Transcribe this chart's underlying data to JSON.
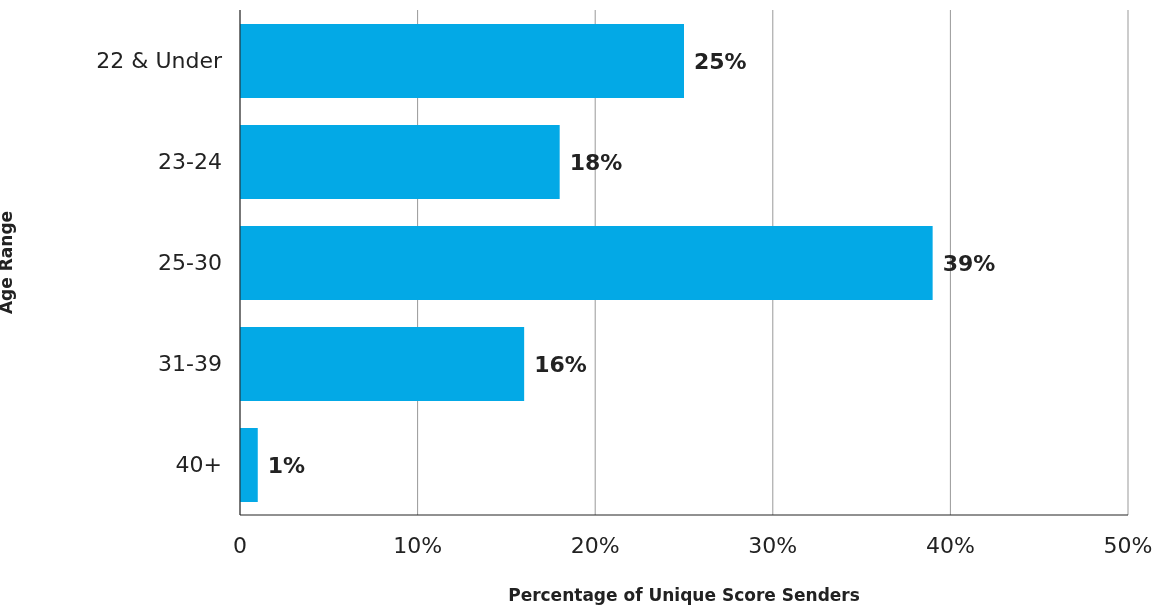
{
  "chart_data": {
    "type": "bar",
    "orientation": "horizontal",
    "xlabel": "Percentage of Unique Score Senders",
    "ylabel": "Age Range",
    "categories": [
      "22 & Under",
      "23-24",
      "25-30",
      "31-39",
      "40+"
    ],
    "values": [
      25,
      18,
      39,
      16,
      1
    ],
    "value_labels": [
      "25%",
      "18%",
      "39%",
      "16%",
      "1%"
    ],
    "color": "#03a9e6",
    "xlim": [
      0,
      50
    ],
    "xticks": [
      0,
      {
        "value": 10,
        "label": "10%"
      },
      {
        "value": 20,
        "label": "20%"
      },
      {
        "value": 30,
        "label": "30%"
      },
      {
        "value": 40,
        "label": "40%"
      },
      {
        "value": 50,
        "label": "50%"
      }
    ],
    "grid": "x",
    "legend": false
  }
}
